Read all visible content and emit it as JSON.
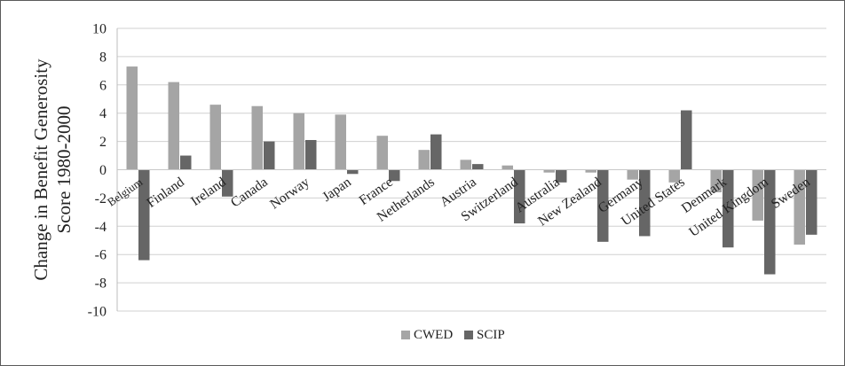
{
  "chart_data": {
    "type": "bar",
    "title": "",
    "ylabel": [
      "Change in Benefit Generosity",
      "Score 1980-2000"
    ],
    "xlabel": "",
    "ylim": [
      -10,
      10
    ],
    "yticks": [
      10,
      8,
      6,
      4,
      2,
      0,
      -2,
      -4,
      -6,
      -8,
      -10
    ],
    "grid": true,
    "legend_position": "bottom",
    "categories": [
      "Belgium",
      "Finland",
      "Ireland",
      "Canada",
      "Norway",
      "Japan",
      "France",
      "Netherlands",
      "Austria",
      "Switzerland",
      "Australia",
      "New Zealand",
      "Germany",
      "United States",
      "Denmark",
      "United Kingdom",
      "Sweden"
    ],
    "series": [
      {
        "name": "CWED",
        "color": "#a5a5a5",
        "values": [
          7.3,
          6.2,
          4.6,
          4.5,
          4.0,
          3.9,
          2.4,
          1.4,
          0.7,
          0.3,
          -0.2,
          -0.2,
          -0.7,
          -0.9,
          -1.6,
          -3.6,
          -5.3
        ]
      },
      {
        "name": "SCIP",
        "color": "#666666",
        "values": [
          -6.4,
          1.0,
          -1.9,
          2.0,
          2.1,
          -0.3,
          -0.8,
          2.5,
          0.4,
          -3.8,
          -0.9,
          -5.1,
          -4.7,
          4.2,
          -5.5,
          -7.4,
          -4.6
        ]
      }
    ]
  }
}
